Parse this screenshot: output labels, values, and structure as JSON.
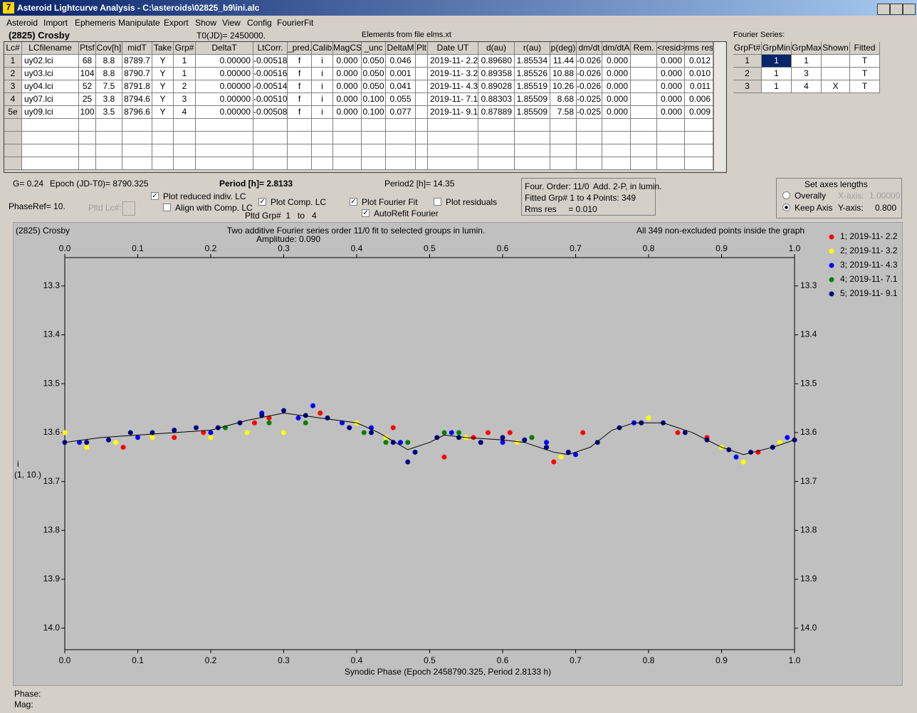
{
  "window": {
    "title": "Asteroid Lightcurve Analysis - C:\\asteroids\\02825_b9\\ini.alc"
  },
  "menu": [
    "Asteroid",
    "Import",
    "Ephemeris",
    "Manipulate",
    "Export",
    "Show",
    "View",
    "Config",
    "FourierFit"
  ],
  "header": {
    "object": "(2825) Crosby",
    "t0": "T0(JD)= 2450000.",
    "elements": "Elements from file elms.xt"
  },
  "table": {
    "columns": [
      "Lc#",
      "LCfilename",
      "Ptsf",
      "Cov[h]",
      "midT",
      "Take",
      "Grp#",
      "DeltaT",
      "LtCorr.",
      "_pred.",
      "Calib",
      "MagCS",
      "_unc",
      "DeltaM",
      "Plt",
      "Date UT",
      "d(au)",
      "r(au)",
      "p(deg)",
      "dm/dt",
      "dm/dtA",
      "Rem.",
      "<resid>",
      "rms res"
    ],
    "rows": [
      [
        "1",
        "uy02.lci",
        "68",
        "8.8",
        "8789.7",
        "Y",
        "1",
        "0.00000",
        "-0.00518",
        "f",
        "i",
        "0.000",
        "0.050",
        "0.046",
        null,
        "2019-11- 2.2",
        "0.89680",
        "1.85534",
        "11.44",
        "-0.026",
        "0.000",
        null,
        "0.000",
        "0.012"
      ],
      [
        "2",
        "uy03.lci",
        "104",
        "8.8",
        "8790.7",
        "Y",
        "1",
        "0.00000",
        "-0.00516",
        "f",
        "i",
        "0.000",
        "0.050",
        "0.001",
        null,
        "2019-11- 3.2",
        "0.89358",
        "1.85526",
        "10.88",
        "-0.026",
        "0.000",
        null,
        "0.000",
        "0.010"
      ],
      [
        "3",
        "uy04.lci",
        "52",
        "7.5",
        "8791.8",
        "Y",
        "2",
        "0.00000",
        "-0.00514",
        "f",
        "i",
        "0.000",
        "0.050",
        "0.041",
        null,
        "2019-11- 4.3",
        "0.89028",
        "1.85519",
        "10.26",
        "-0.026",
        "0.000",
        null,
        "0.000",
        "0.011"
      ],
      [
        "4",
        "uy07.lci",
        "25",
        "3.8",
        "8794.6",
        "Y",
        "3",
        "0.00000",
        "-0.00510",
        "f",
        "i",
        "0.000",
        "0.100",
        "0.055",
        null,
        "2019-11- 7.1",
        "0.88303",
        "1.85509",
        "8.68",
        "-0.025",
        "0.000",
        null,
        "0.000",
        "0.006"
      ],
      [
        "5e",
        "uy09.lci",
        "100",
        "3.5",
        "8796.6",
        "Y",
        "4",
        "0.00000",
        "-0.00508",
        "f",
        "i",
        "0.000",
        "0.100",
        "0.077",
        null,
        "2019-11- 9.1",
        "0.87889",
        "1.85509",
        "7.58",
        "-0.025",
        "0.000",
        null,
        "0.000",
        "0.009"
      ]
    ]
  },
  "fourier_table": {
    "title": "Fourier Series:",
    "columns": [
      "GrpFt#",
      "GrpMin",
      "GrpMax",
      "Shown",
      "Fitted"
    ],
    "rows": [
      [
        "1",
        "1",
        "1",
        null,
        "T"
      ],
      [
        "2",
        "1",
        "3",
        null,
        "T"
      ],
      [
        "3",
        "1",
        "4",
        "X",
        "T"
      ]
    ]
  },
  "info": {
    "g": "G= 0.24",
    "epoch": "Epoch (JD-T0)= 8790.325",
    "period": "Period [h]= 2.8133",
    "period2": "Period2 [h]= 14.35",
    "phaseref": "PhaseRef= 10.",
    "pltd_lc": "Pltd Lc#:",
    "pltd_grp": "Pltd Grp#  1   to   4"
  },
  "checkboxes": [
    {
      "label": "Plot reduced indiv. LC",
      "checked": true
    },
    {
      "label": "Align with Comp. LC",
      "checked": false
    },
    {
      "label": "Plot Comp. LC",
      "checked": true
    },
    {
      "label": "Plot Fourier Fit",
      "checked": true
    },
    {
      "label": "AutoRefit Fourier",
      "checked": true
    },
    {
      "label": "Plot residuals",
      "checked": false
    }
  ],
  "fit_info": [
    "Four. Order: 11/0",
    "Add. 2-P, in lumin.",
    "Fitted Grp# 1 to 4",
    "Points: 349",
    "Rms res     = 0.010"
  ],
  "axes_box": {
    "title": "Set axes lengths",
    "radios": [
      {
        "label": "Overally",
        "checked": false
      },
      {
        "label": "Keep Axis",
        "checked": true
      }
    ],
    "x_label": "X-axis:",
    "x_value": "1.00000",
    "y_label": "Y-axis:",
    "y_value": "0.800"
  },
  "status": {
    "phase": "Phase:",
    "mag": "Mag:"
  },
  "chart_data": {
    "type": "scatter",
    "object": "(2825) Crosby",
    "title": "Two additive Fourier series order 11/0 fit to selected groups in lumin.",
    "subtitle": "Amplitude: 0.090",
    "note": "All 349 non-excluded points inside the graph",
    "y_label": "i",
    "y_label2": "(1, 10.)",
    "x_label": "Synodic Phase (Epoch 2458790.325, Period 2.8133 h)",
    "xlim": [
      0,
      1
    ],
    "xticks": [
      {
        "value": 0,
        "label": "0.0"
      },
      0.1,
      0.2,
      0.3,
      0.4,
      0.5,
      0.6,
      0.7,
      0.8,
      0.9,
      {
        "value": 1,
        "label": "1.0"
      }
    ],
    "ylim": [
      13.242,
      14.044
    ],
    "y_inverted": true,
    "yticks": [
      13.3,
      13.4,
      13.5,
      13.6,
      13.7,
      13.8,
      13.9,
      {
        "value": 14,
        "label": "14.0"
      }
    ],
    "series": [
      {
        "name": "1; 2019-11- 2.2",
        "color": "#ff0000",
        "x": [
          0.08,
          0.15,
          0.19,
          0.26,
          0.28,
          0.35,
          0.45,
          0.52,
          0.56,
          0.58,
          0.61,
          0.64,
          0.67,
          0.69,
          0.71,
          0.78,
          0.84,
          0.88,
          0.95
        ],
        "y": [
          13.63,
          13.61,
          13.6,
          13.58,
          13.57,
          13.56,
          13.59,
          13.65,
          13.61,
          13.6,
          13.6,
          13.61,
          13.66,
          13.64,
          13.6,
          13.58,
          13.6,
          13.61,
          13.64
        ]
      },
      {
        "name": "2; 2019-11- 3.2",
        "color": "#ffff00",
        "x": [
          0.0,
          0.03,
          0.07,
          0.12,
          0.2,
          0.25,
          0.3,
          0.33,
          0.4,
          0.44,
          0.55,
          0.62,
          0.68,
          0.73,
          0.76,
          0.8,
          0.85,
          0.9,
          0.93,
          0.98
        ],
        "y": [
          13.6,
          13.63,
          13.62,
          13.61,
          13.61,
          13.6,
          13.6,
          13.58,
          13.58,
          13.61,
          13.61,
          13.62,
          13.65,
          13.62,
          13.59,
          13.57,
          13.6,
          13.63,
          13.66,
          13.62
        ]
      },
      {
        "name": "3; 2019-11- 4.3",
        "color": "#0000ff",
        "x": [
          0.02,
          0.1,
          0.2,
          0.27,
          0.32,
          0.34,
          0.38,
          0.42,
          0.46,
          0.48,
          0.53,
          0.6,
          0.66,
          0.7,
          0.78,
          0.92,
          0.99
        ],
        "y": [
          13.62,
          13.61,
          13.6,
          13.56,
          13.57,
          13.545,
          13.58,
          13.59,
          13.62,
          13.64,
          13.6,
          13.62,
          13.62,
          13.645,
          13.58,
          13.65,
          13.61
        ]
      },
      {
        "name": "4; 2019-11- 7.1",
        "color": "#008000",
        "x": [
          0.22,
          0.28,
          0.33,
          0.41,
          0.44,
          0.47,
          0.52,
          0.54,
          0.57,
          0.64
        ],
        "y": [
          13.59,
          13.58,
          13.58,
          13.6,
          13.62,
          13.62,
          13.6,
          13.6,
          13.62,
          13.61
        ]
      },
      {
        "name": "5; 2019-11- 9.1",
        "color": "#000080",
        "x": [
          0.0,
          0.03,
          0.06,
          0.09,
          0.12,
          0.15,
          0.18,
          0.21,
          0.24,
          0.27,
          0.3,
          0.33,
          0.36,
          0.39,
          0.42,
          0.45,
          0.47,
          0.48,
          0.51,
          0.54,
          0.57,
          0.6,
          0.63,
          0.66,
          0.69,
          0.73,
          0.76,
          0.79,
          0.82,
          0.85,
          0.88,
          0.91,
          0.94,
          0.97,
          1.0
        ],
        "y": [
          13.62,
          13.62,
          13.615,
          13.6,
          13.6,
          13.595,
          13.59,
          13.59,
          13.58,
          13.565,
          13.555,
          13.565,
          13.57,
          13.59,
          13.6,
          13.62,
          13.66,
          13.64,
          13.61,
          13.61,
          13.62,
          13.61,
          13.615,
          13.63,
          13.64,
          13.62,
          13.59,
          13.58,
          13.58,
          13.6,
          13.615,
          13.635,
          13.64,
          13.63,
          13.615
        ]
      }
    ],
    "fit": {
      "color": "#000000",
      "x": [
        0,
        0.05,
        0.1,
        0.15,
        0.2,
        0.25,
        0.3,
        0.35,
        0.4,
        0.43,
        0.47,
        0.5,
        0.52,
        0.55,
        0.6,
        0.63,
        0.67,
        0.69,
        0.72,
        0.75,
        0.78,
        0.82,
        0.86,
        0.9,
        0.93,
        0.97,
        1.0
      ],
      "y": [
        13.62,
        13.61,
        13.605,
        13.6,
        13.595,
        13.575,
        13.56,
        13.57,
        13.58,
        13.6,
        13.635,
        13.62,
        13.605,
        13.61,
        13.615,
        13.62,
        13.64,
        13.645,
        13.63,
        13.595,
        13.58,
        13.58,
        13.6,
        13.63,
        13.645,
        13.63,
        13.615
      ]
    }
  }
}
